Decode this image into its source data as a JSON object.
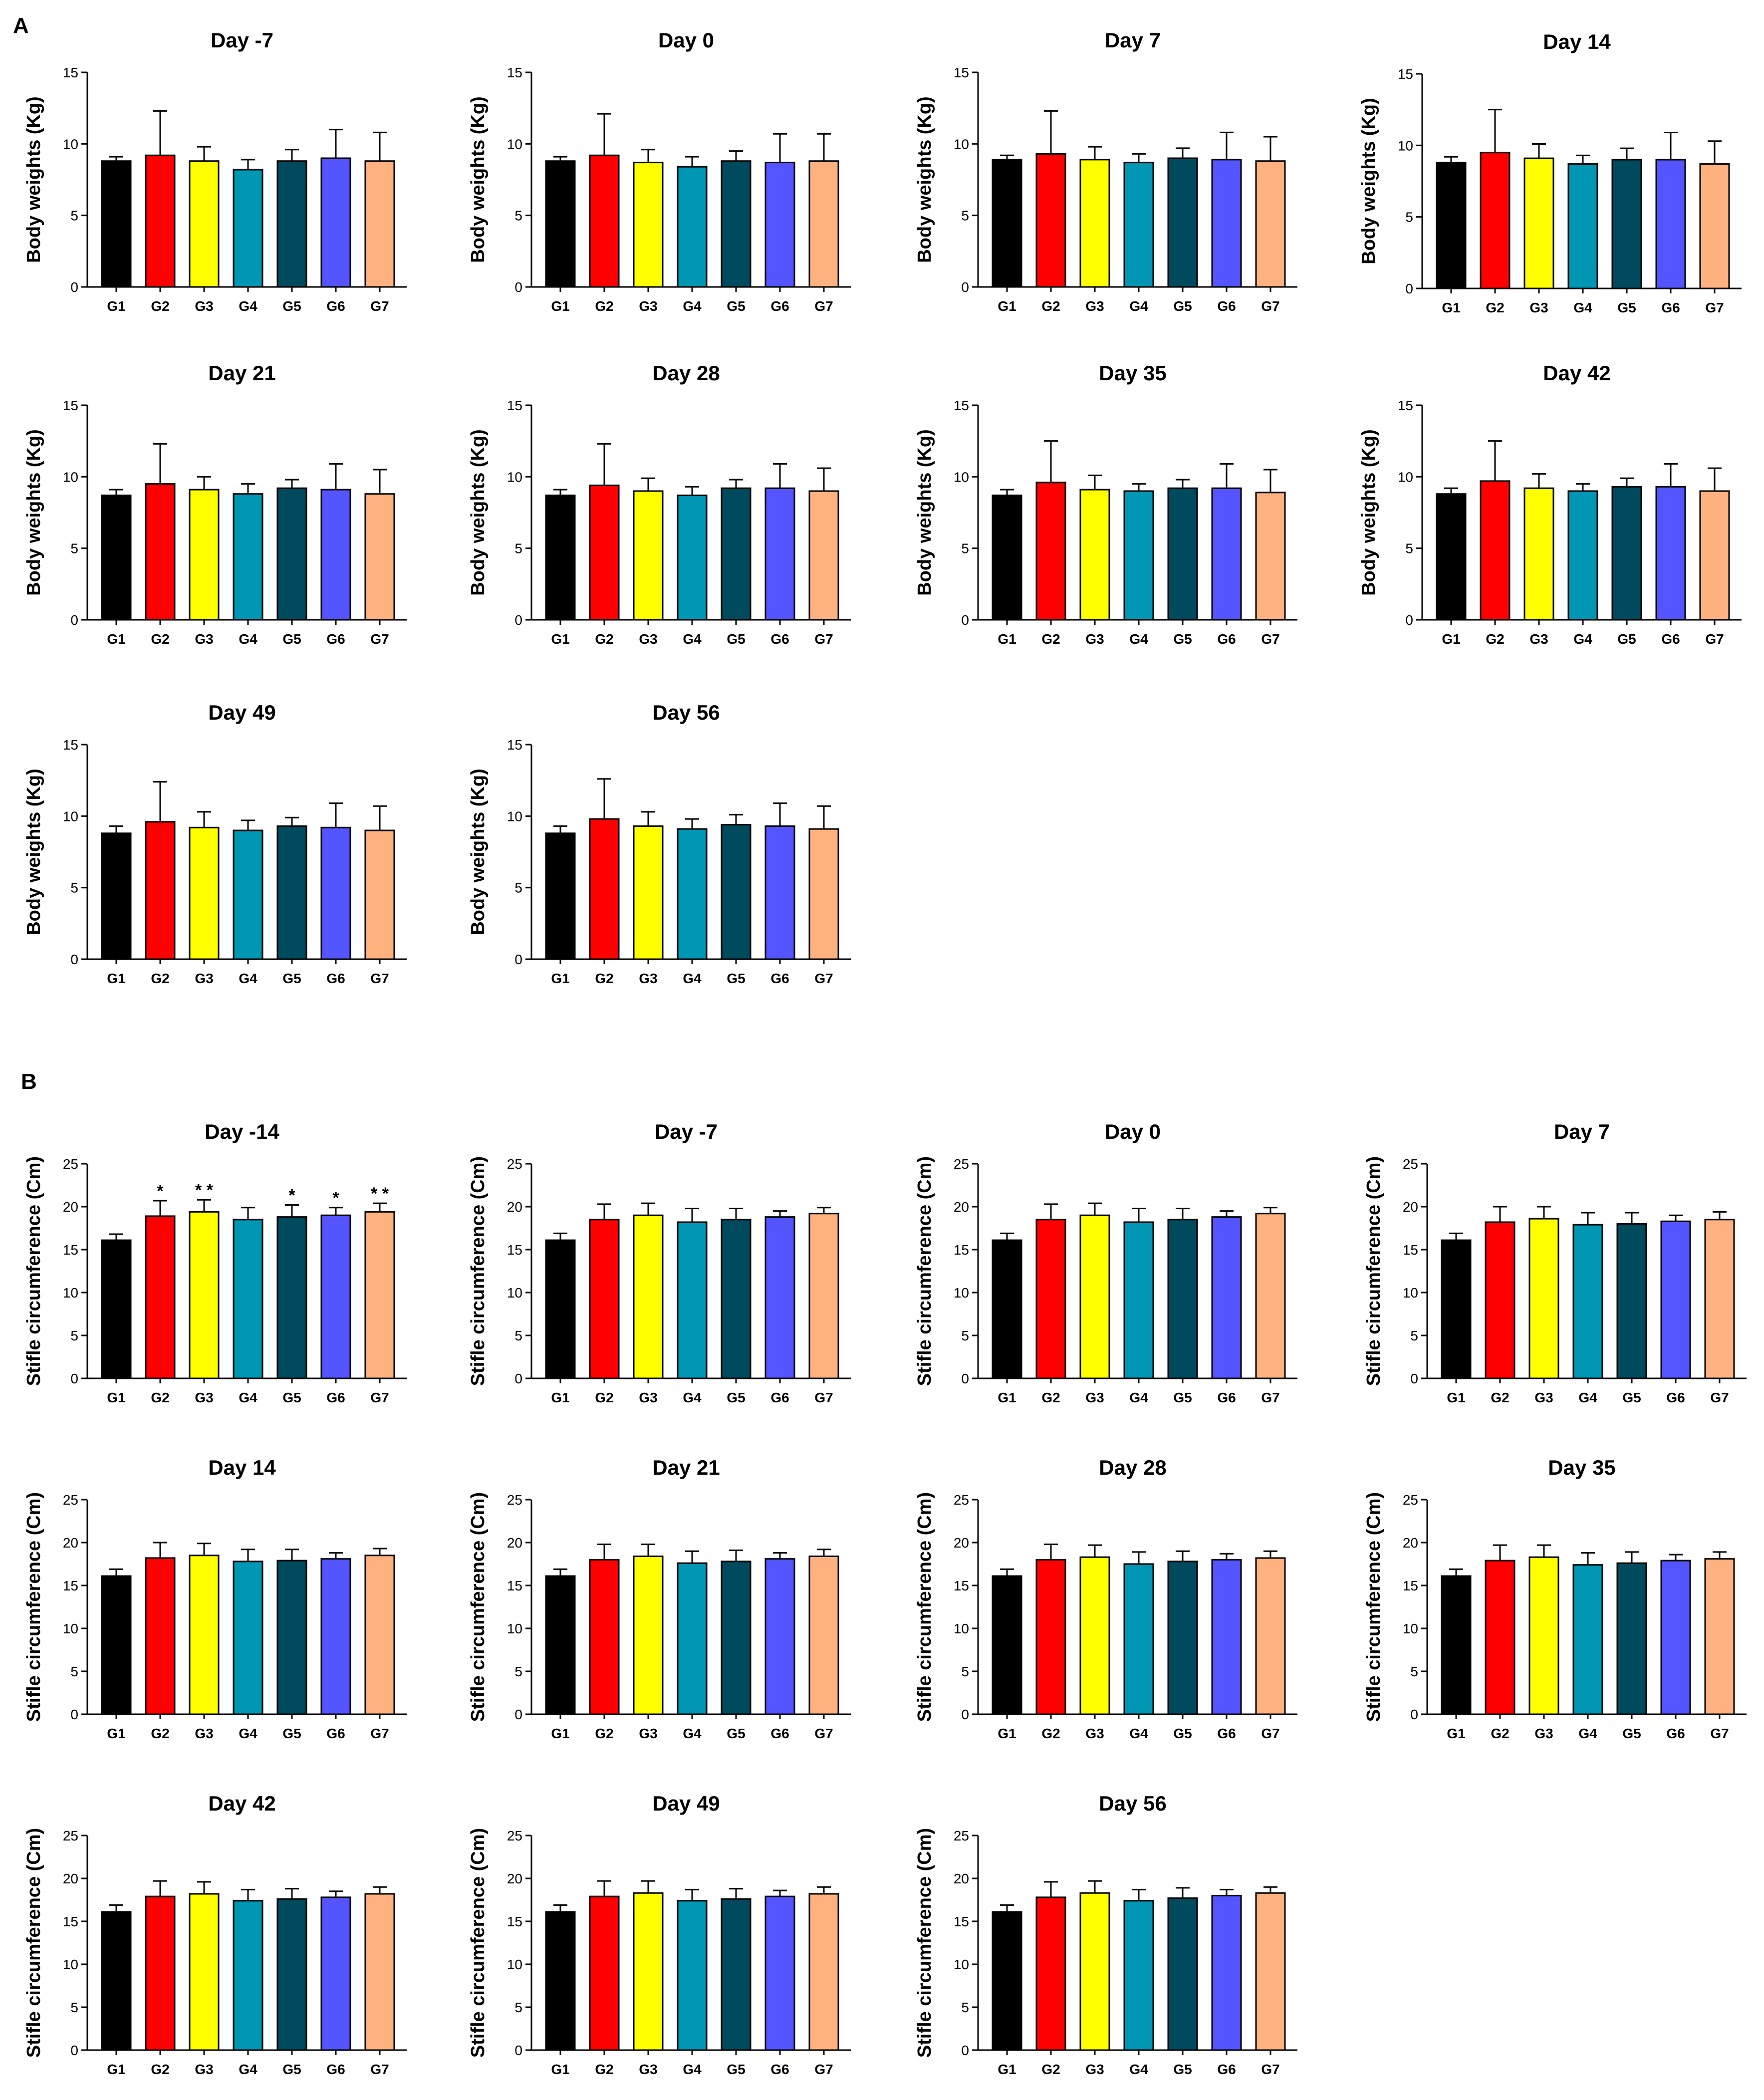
{
  "panels": [
    {
      "label": "A"
    },
    {
      "label": "B"
    }
  ],
  "groups": [
    "G1",
    "G2",
    "G3",
    "G4",
    "G5",
    "G6",
    "G7"
  ],
  "colors": [
    "#000000",
    "#ff0000",
    "#ffff00",
    "#0096b4",
    "#004a5e",
    "#5555ff",
    "#ffb27f"
  ],
  "chart_data": [
    {
      "type": "bar",
      "panel": "A",
      "title": "Day -7",
      "ylabel": "Body weights (Kg)",
      "ylim": [
        0,
        15
      ],
      "yticks": [
        "0",
        "5",
        "10",
        "15"
      ],
      "categories": [
        "G1",
        "G2",
        "G3",
        "G4",
        "G5",
        "G6",
        "G7"
      ],
      "values": [
        8.8,
        9.2,
        8.8,
        8.2,
        8.8,
        9.0,
        8.8
      ],
      "errors": [
        0.3,
        3.1,
        1.0,
        0.7,
        0.8,
        2.0,
        2.0
      ],
      "sig": [
        "",
        "",
        "",
        "",
        "",
        "",
        ""
      ]
    },
    {
      "type": "bar",
      "panel": "A",
      "title": "Day 0",
      "ylabel": "Body weights (Kg)",
      "ylim": [
        0,
        15
      ],
      "yticks": [
        "0",
        "5",
        "10",
        "15"
      ],
      "categories": [
        "G1",
        "G2",
        "G3",
        "G4",
        "G5",
        "G6",
        "G7"
      ],
      "values": [
        8.8,
        9.2,
        8.7,
        8.4,
        8.8,
        8.7,
        8.8
      ],
      "errors": [
        0.3,
        2.9,
        0.9,
        0.7,
        0.7,
        2.0,
        1.9
      ],
      "sig": [
        "",
        "",
        "",
        "",
        "",
        "",
        ""
      ]
    },
    {
      "type": "bar",
      "panel": "A",
      "title": "Day 7",
      "ylabel": "Body weights (Kg)",
      "ylim": [
        0,
        15
      ],
      "yticks": [
        "0",
        "5",
        "10",
        "15"
      ],
      "categories": [
        "G1",
        "G2",
        "G3",
        "G4",
        "G5",
        "G6",
        "G7"
      ],
      "values": [
        8.9,
        9.3,
        8.9,
        8.7,
        9.0,
        8.9,
        8.8
      ],
      "errors": [
        0.3,
        3.0,
        0.9,
        0.6,
        0.7,
        1.9,
        1.7
      ],
      "sig": [
        "",
        "",
        "",
        "",
        "",
        "",
        ""
      ]
    },
    {
      "type": "bar",
      "panel": "A",
      "title": "Day 14",
      "ylabel": "Body weights (Kg)",
      "ylim": [
        0,
        15
      ],
      "yticks": [
        "0",
        "5",
        "10",
        "15"
      ],
      "categories": [
        "G1",
        "G2",
        "G3",
        "G4",
        "G5",
        "G6",
        "G7"
      ],
      "values": [
        8.8,
        9.5,
        9.1,
        8.7,
        9.0,
        9.0,
        8.7
      ],
      "errors": [
        0.4,
        3.0,
        1.0,
        0.6,
        0.8,
        1.9,
        1.6
      ],
      "sig": [
        "",
        "",
        "",
        "",
        "",
        "",
        ""
      ]
    },
    {
      "type": "bar",
      "panel": "A",
      "title": "Day 21",
      "ylabel": "Body weights (Kg)",
      "ylim": [
        0,
        15
      ],
      "yticks": [
        "0",
        "5",
        "10",
        "15"
      ],
      "categories": [
        "G1",
        "G2",
        "G3",
        "G4",
        "G5",
        "G6",
        "G7"
      ],
      "values": [
        8.7,
        9.5,
        9.1,
        8.8,
        9.2,
        9.1,
        8.8
      ],
      "errors": [
        0.4,
        2.8,
        0.9,
        0.7,
        0.6,
        1.8,
        1.7
      ],
      "sig": [
        "",
        "",
        "",
        "",
        "",
        "",
        ""
      ]
    },
    {
      "type": "bar",
      "panel": "A",
      "title": "Day 28",
      "ylabel": "Body weights (Kg)",
      "ylim": [
        0,
        15
      ],
      "yticks": [
        "0",
        "5",
        "10",
        "15"
      ],
      "categories": [
        "G1",
        "G2",
        "G3",
        "G4",
        "G5",
        "G6",
        "G7"
      ],
      "values": [
        8.7,
        9.4,
        9.0,
        8.7,
        9.2,
        9.2,
        9.0
      ],
      "errors": [
        0.4,
        2.9,
        0.9,
        0.6,
        0.6,
        1.7,
        1.6
      ],
      "sig": [
        "",
        "",
        "",
        "",
        "",
        "",
        ""
      ]
    },
    {
      "type": "bar",
      "panel": "A",
      "title": "Day 35",
      "ylabel": "Body weights (Kg)",
      "ylim": [
        0,
        15
      ],
      "yticks": [
        "0",
        "5",
        "10",
        "15"
      ],
      "categories": [
        "G1",
        "G2",
        "G3",
        "G4",
        "G5",
        "G6",
        "G7"
      ],
      "values": [
        8.7,
        9.6,
        9.1,
        9.0,
        9.2,
        9.2,
        8.9
      ],
      "errors": [
        0.4,
        2.9,
        1.0,
        0.5,
        0.6,
        1.7,
        1.6
      ],
      "sig": [
        "",
        "",
        "",
        "",
        "",
        "",
        ""
      ]
    },
    {
      "type": "bar",
      "panel": "A",
      "title": "Day 42",
      "ylabel": "Body weights (Kg)",
      "ylim": [
        0,
        15
      ],
      "yticks": [
        "0",
        "5",
        "10",
        "15"
      ],
      "categories": [
        "G1",
        "G2",
        "G3",
        "G4",
        "G5",
        "G6",
        "G7"
      ],
      "values": [
        8.8,
        9.7,
        9.2,
        9.0,
        9.3,
        9.3,
        9.0
      ],
      "errors": [
        0.4,
        2.8,
        1.0,
        0.5,
        0.6,
        1.6,
        1.6
      ],
      "sig": [
        "",
        "",
        "",
        "",
        "",
        "",
        ""
      ]
    },
    {
      "type": "bar",
      "panel": "A",
      "title": "Day 49",
      "ylabel": "Body weights (Kg)",
      "ylim": [
        0,
        15
      ],
      "yticks": [
        "0",
        "5",
        "10",
        "15"
      ],
      "categories": [
        "G1",
        "G2",
        "G3",
        "G4",
        "G5",
        "G6",
        "G7"
      ],
      "values": [
        8.8,
        9.6,
        9.2,
        9.0,
        9.3,
        9.2,
        9.0
      ],
      "errors": [
        0.5,
        2.8,
        1.1,
        0.7,
        0.6,
        1.7,
        1.7
      ],
      "sig": [
        "",
        "",
        "",
        "",
        "",
        "",
        ""
      ]
    },
    {
      "type": "bar",
      "panel": "A",
      "title": "Day 56",
      "ylabel": "Body weights (Kg)",
      "ylim": [
        0,
        15
      ],
      "yticks": [
        "0",
        "5",
        "10",
        "15"
      ],
      "categories": [
        "G1",
        "G2",
        "G3",
        "G4",
        "G5",
        "G6",
        "G7"
      ],
      "values": [
        8.8,
        9.8,
        9.3,
        9.1,
        9.4,
        9.3,
        9.1
      ],
      "errors": [
        0.5,
        2.8,
        1.0,
        0.7,
        0.7,
        1.6,
        1.6
      ],
      "sig": [
        "",
        "",
        "",
        "",
        "",
        "",
        ""
      ]
    },
    {
      "type": "bar",
      "panel": "B",
      "title": "Day -14",
      "ylabel": "Stifle circumference  (Cm)",
      "ylim": [
        0,
        25
      ],
      "yticks": [
        "0",
        "5",
        "10",
        "15",
        "20",
        "25"
      ],
      "categories": [
        "G1",
        "G2",
        "G3",
        "G4",
        "G5",
        "G6",
        "G7"
      ],
      "values": [
        16.1,
        18.9,
        19.4,
        18.5,
        18.8,
        19.0,
        19.4
      ],
      "errors": [
        0.7,
        1.8,
        1.4,
        1.4,
        1.4,
        0.9,
        1.0
      ],
      "sig": [
        "",
        "*",
        "* *",
        "",
        "*",
        "*",
        "* *"
      ]
    },
    {
      "type": "bar",
      "panel": "B",
      "title": "Day -7",
      "ylabel": "Stifle circumference  (Cm)",
      "ylim": [
        0,
        25
      ],
      "yticks": [
        "0",
        "5",
        "10",
        "15",
        "20",
        "25"
      ],
      "categories": [
        "G1",
        "G2",
        "G3",
        "G4",
        "G5",
        "G6",
        "G7"
      ],
      "values": [
        16.1,
        18.5,
        19.0,
        18.2,
        18.5,
        18.8,
        19.2
      ],
      "errors": [
        0.8,
        1.8,
        1.4,
        1.6,
        1.3,
        0.7,
        0.7
      ],
      "sig": [
        "",
        "",
        "",
        "",
        "",
        "",
        ""
      ]
    },
    {
      "type": "bar",
      "panel": "B",
      "title": "Day 0",
      "ylabel": "Stifle circumference  (Cm)",
      "ylim": [
        0,
        25
      ],
      "yticks": [
        "0",
        "5",
        "10",
        "15",
        "20",
        "25"
      ],
      "categories": [
        "G1",
        "G2",
        "G3",
        "G4",
        "G5",
        "G6",
        "G7"
      ],
      "values": [
        16.1,
        18.5,
        19.0,
        18.2,
        18.5,
        18.8,
        19.2
      ],
      "errors": [
        0.8,
        1.8,
        1.4,
        1.6,
        1.3,
        0.7,
        0.7
      ],
      "sig": [
        "",
        "",
        "",
        "",
        "",
        "",
        ""
      ]
    },
    {
      "type": "bar",
      "panel": "B",
      "title": "Day 7",
      "ylabel": "Stifle circumference  (Cm)",
      "ylim": [
        0,
        25
      ],
      "yticks": [
        "0",
        "5",
        "10",
        "15",
        "20",
        "25"
      ],
      "categories": [
        "G1",
        "G2",
        "G3",
        "G4",
        "G5",
        "G6",
        "G7"
      ],
      "values": [
        16.1,
        18.2,
        18.6,
        17.9,
        18.0,
        18.3,
        18.5
      ],
      "errors": [
        0.8,
        1.8,
        1.4,
        1.4,
        1.3,
        0.7,
        0.9
      ],
      "sig": [
        "",
        "",
        "",
        "",
        "",
        "",
        ""
      ]
    },
    {
      "type": "bar",
      "panel": "B",
      "title": "Day 14",
      "ylabel": "Stifle circumference  (Cm)",
      "ylim": [
        0,
        25
      ],
      "yticks": [
        "0",
        "5",
        "10",
        "15",
        "20",
        "25"
      ],
      "categories": [
        "G1",
        "G2",
        "G3",
        "G4",
        "G5",
        "G6",
        "G7"
      ],
      "values": [
        16.1,
        18.2,
        18.5,
        17.8,
        17.9,
        18.1,
        18.5
      ],
      "errors": [
        0.8,
        1.8,
        1.4,
        1.4,
        1.3,
        0.7,
        0.8
      ],
      "sig": [
        "",
        "",
        "",
        "",
        "",
        "",
        ""
      ]
    },
    {
      "type": "bar",
      "panel": "B",
      "title": "Day 21",
      "ylabel": "Stifle circumference  (Cm)",
      "ylim": [
        0,
        25
      ],
      "yticks": [
        "0",
        "5",
        "10",
        "15",
        "20",
        "25"
      ],
      "categories": [
        "G1",
        "G2",
        "G3",
        "G4",
        "G5",
        "G6",
        "G7"
      ],
      "values": [
        16.1,
        18.0,
        18.4,
        17.6,
        17.8,
        18.1,
        18.4
      ],
      "errors": [
        0.8,
        1.8,
        1.4,
        1.4,
        1.3,
        0.7,
        0.8
      ],
      "sig": [
        "",
        "",
        "",
        "",
        "",
        "",
        ""
      ]
    },
    {
      "type": "bar",
      "panel": "B",
      "title": "Day 28",
      "ylabel": "Stifle circumference  (Cm)",
      "ylim": [
        0,
        25
      ],
      "yticks": [
        "0",
        "5",
        "10",
        "15",
        "20",
        "25"
      ],
      "categories": [
        "G1",
        "G2",
        "G3",
        "G4",
        "G5",
        "G6",
        "G7"
      ],
      "values": [
        16.1,
        18.0,
        18.3,
        17.5,
        17.8,
        18.0,
        18.2
      ],
      "errors": [
        0.8,
        1.8,
        1.4,
        1.4,
        1.2,
        0.7,
        0.8
      ],
      "sig": [
        "",
        "",
        "",
        "",
        "",
        "",
        ""
      ]
    },
    {
      "type": "bar",
      "panel": "B",
      "title": "Day 35",
      "ylabel": "Stifle circumference  (Cm)",
      "ylim": [
        0,
        25
      ],
      "yticks": [
        "0",
        "5",
        "10",
        "15",
        "20",
        "25"
      ],
      "categories": [
        "G1",
        "G2",
        "G3",
        "G4",
        "G5",
        "G6",
        "G7"
      ],
      "values": [
        16.1,
        17.9,
        18.3,
        17.4,
        17.6,
        17.9,
        18.1
      ],
      "errors": [
        0.8,
        1.8,
        1.4,
        1.4,
        1.3,
        0.7,
        0.8
      ],
      "sig": [
        "",
        "",
        "",
        "",
        "",
        "",
        ""
      ]
    },
    {
      "type": "bar",
      "panel": "B",
      "title": "Day 42",
      "ylabel": "Stifle circumference  (Cm)",
      "ylim": [
        0,
        25
      ],
      "yticks": [
        "0",
        "5",
        "10",
        "15",
        "20",
        "25"
      ],
      "categories": [
        "G1",
        "G2",
        "G3",
        "G4",
        "G5",
        "G6",
        "G7"
      ],
      "values": [
        16.1,
        17.9,
        18.2,
        17.4,
        17.6,
        17.8,
        18.2
      ],
      "errors": [
        0.8,
        1.8,
        1.4,
        1.3,
        1.2,
        0.7,
        0.8
      ],
      "sig": [
        "",
        "",
        "",
        "",
        "",
        "",
        ""
      ]
    },
    {
      "type": "bar",
      "panel": "B",
      "title": "Day 49",
      "ylabel": "Stifle circumference  (Cm)",
      "ylim": [
        0,
        25
      ],
      "yticks": [
        "0",
        "5",
        "10",
        "15",
        "20",
        "25"
      ],
      "categories": [
        "G1",
        "G2",
        "G3",
        "G4",
        "G5",
        "G6",
        "G7"
      ],
      "values": [
        16.1,
        17.9,
        18.3,
        17.4,
        17.6,
        17.9,
        18.2
      ],
      "errors": [
        0.8,
        1.8,
        1.4,
        1.3,
        1.2,
        0.7,
        0.8
      ],
      "sig": [
        "",
        "",
        "",
        "",
        "",
        "",
        ""
      ]
    },
    {
      "type": "bar",
      "panel": "B",
      "title": "Day 56",
      "ylabel": "Stifle circumference  (Cm)",
      "ylim": [
        0,
        25
      ],
      "yticks": [
        "0",
        "5",
        "10",
        "15",
        "20",
        "25"
      ],
      "categories": [
        "G1",
        "G2",
        "G3",
        "G4",
        "G5",
        "G6",
        "G7"
      ],
      "values": [
        16.1,
        17.8,
        18.3,
        17.4,
        17.7,
        18.0,
        18.3
      ],
      "errors": [
        0.8,
        1.8,
        1.4,
        1.3,
        1.2,
        0.7,
        0.7
      ],
      "sig": [
        "",
        "",
        "",
        "",
        "",
        "",
        ""
      ]
    }
  ]
}
